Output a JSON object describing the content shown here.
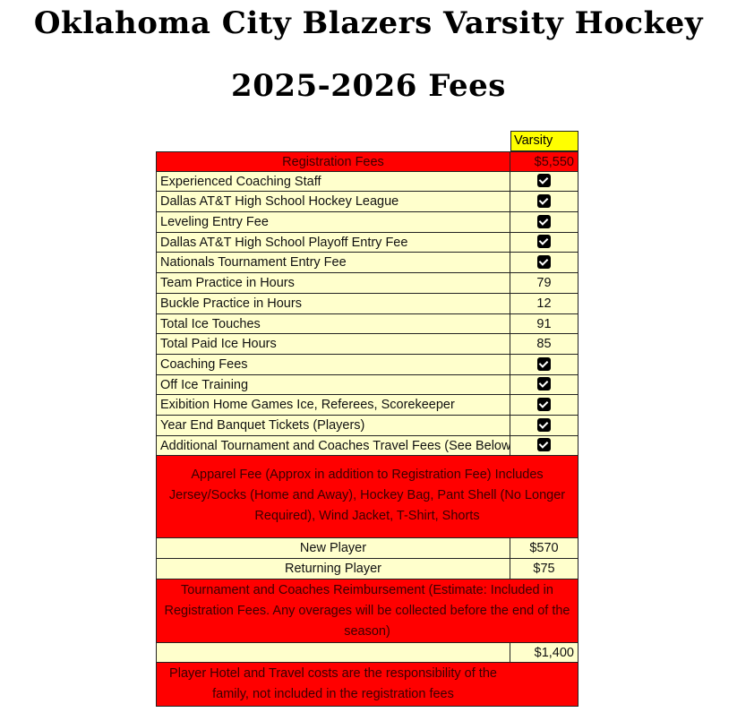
{
  "title": "Oklahoma City Blazers Varsity Hockey",
  "subtitle": "2025-2026 Fees",
  "column_header": "Varsity",
  "registration": {
    "label": "Registration Fees",
    "value": "$5,550"
  },
  "items": [
    {
      "label": "Experienced Coaching Staff",
      "check": true
    },
    {
      "label": "Dallas AT&T High School Hockey League",
      "check": true
    },
    {
      "label": "Leveling  Entry Fee",
      "check": true
    },
    {
      "label": "Dallas AT&T High School Playoff Entry Fee",
      "check": true
    },
    {
      "label": "Nationals Tournament Entry Fee",
      "check": true
    },
    {
      "label": "Team Practice in Hours",
      "value": "79"
    },
    {
      "label": "Buckle Practice in Hours",
      "value": "12"
    },
    {
      "label": "Total Ice Touches",
      "value": "91"
    },
    {
      "label": "Total Paid Ice Hours",
      "value": "85"
    },
    {
      "label": "Coaching Fees",
      "check": true
    },
    {
      "label": "Off Ice Training",
      "check": true
    },
    {
      "label": "Exibition Home Games Ice, Referees, Scorekeeper",
      "check": true
    },
    {
      "label": "Year End Banquet Tickets (Players)",
      "check": true
    },
    {
      "label": "Additional Tournament and Coaches Travel Fees (See Below)",
      "check": true
    }
  ],
  "apparel": {
    "text": "Apparel Fee (Approx in addition to Registration Fee) Includes Jersey/Socks (Home and Away), Hockey Bag, Pant Shell (No Longer Required), Wind Jacket, T-Shirt, Shorts",
    "new_label": "New Player",
    "new_value": "$570",
    "returning_label": "Returning Player",
    "returning_value": "$75"
  },
  "tournament": {
    "text": "Tournament and Coaches Reimbursement (Estimate: Included in Registration Fees. Any overages will be collected before the end of the season)",
    "value": "$1,400"
  },
  "hotel_note": "Player Hotel and Travel costs are the responsibility of the family, not included in the registration fees",
  "colors": {
    "header": "#FFFF00",
    "section": "#FF0000",
    "row": "#FFFFCC"
  }
}
